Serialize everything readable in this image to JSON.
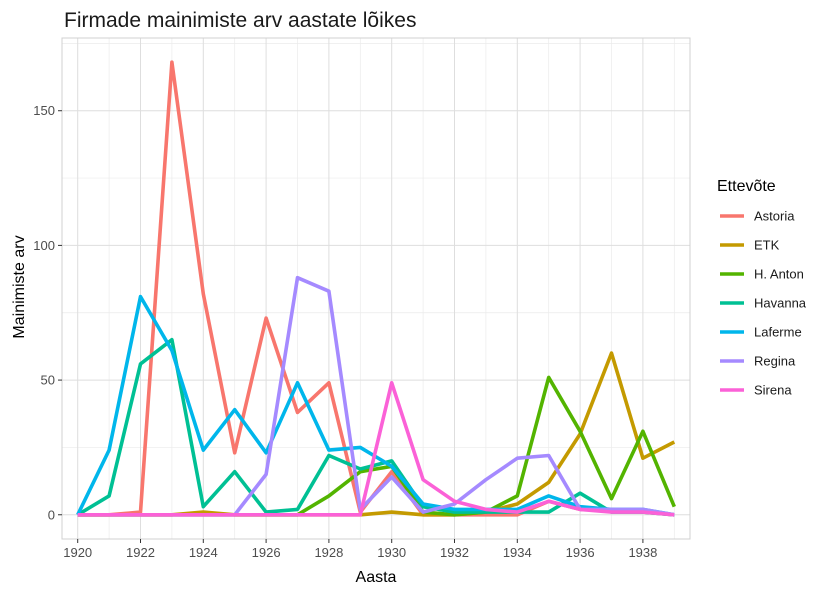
{
  "chart_data": {
    "type": "line",
    "title": "Firmade mainimiste arv aastate lõikes",
    "xlabel": "Aasta",
    "ylabel": "Mainimiste arv",
    "xlim": [
      1919.5,
      1939.5
    ],
    "ylim": [
      -9,
      177
    ],
    "x_ticks": [
      1920,
      1922,
      1924,
      1926,
      1928,
      1930,
      1932,
      1934,
      1936,
      1938
    ],
    "x_tick_labels": [
      "1920",
      "1922",
      "1924",
      "1926",
      "1928",
      "1930",
      "1932",
      "1934",
      "1936",
      "1938"
    ],
    "y_ticks": [
      0,
      50,
      100,
      150
    ],
    "y_tick_labels": [
      "0",
      "50",
      "100",
      "150"
    ],
    "grid": true,
    "legend_position": "right",
    "legend_title": "Ettevõte",
    "x": [
      1920,
      1921,
      1922,
      1923,
      1924,
      1925,
      1926,
      1927,
      1928,
      1929,
      1930,
      1931,
      1932,
      1933,
      1934,
      1935,
      1936,
      1937,
      1938,
      1939
    ],
    "series": [
      {
        "name": "Astoria",
        "color": "#F8766D",
        "values": [
          0,
          0,
          1,
          168,
          82,
          23,
          73,
          38,
          49,
          1,
          16,
          0,
          0,
          0,
          0,
          5,
          2,
          2,
          1,
          0
        ]
      },
      {
        "name": "ETK",
        "color": "#C49A00",
        "values": [
          0,
          0,
          0,
          0,
          1,
          0,
          0,
          0,
          0,
          0,
          1,
          0,
          0,
          1,
          4,
          12,
          30,
          60,
          21,
          27
        ]
      },
      {
        "name": "H. Anton",
        "color": "#53B400",
        "values": [
          0,
          0,
          0,
          0,
          0,
          0,
          0,
          0,
          7,
          16,
          18,
          1,
          0,
          1,
          7,
          51,
          31,
          6,
          31,
          3
        ]
      },
      {
        "name": "Havanna",
        "color": "#00C094",
        "values": [
          0,
          7,
          56,
          65,
          3,
          16,
          1,
          2,
          22,
          17,
          20,
          3,
          1,
          1,
          1,
          1,
          8,
          1,
          1,
          0
        ]
      },
      {
        "name": "Laferme",
        "color": "#00B6EB",
        "values": [
          0,
          24,
          81,
          61,
          24,
          39,
          23,
          49,
          24,
          25,
          18,
          4,
          2,
          2,
          2,
          7,
          3,
          2,
          2,
          0
        ]
      },
      {
        "name": "Regina",
        "color": "#A58AFF",
        "values": [
          0,
          0,
          0,
          0,
          0,
          0,
          15,
          88,
          83,
          2,
          14,
          1,
          4,
          13,
          21,
          22,
          2,
          2,
          2,
          0
        ]
      },
      {
        "name": "Sirena",
        "color": "#FB61D7",
        "values": [
          0,
          0,
          0,
          0,
          0,
          0,
          0,
          0,
          0,
          0,
          49,
          13,
          5,
          2,
          1,
          5,
          2,
          1,
          1,
          0
        ]
      }
    ]
  }
}
